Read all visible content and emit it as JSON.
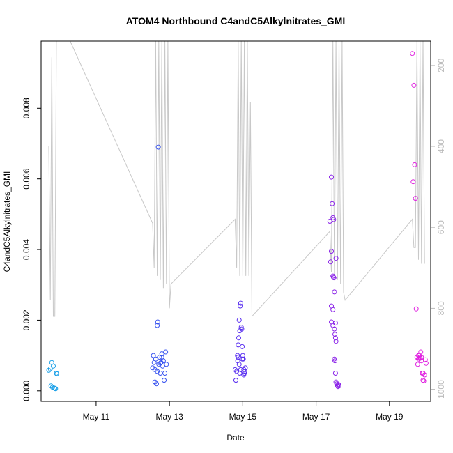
{
  "chart_data": {
    "type": "scatter",
    "title": "ATOM4 Northbound C4andC5Alkylnitrates_GMI",
    "xlabel": "Date",
    "ylabel": "C4andC5Alkylnitrates_GMI",
    "x_range": [
      "2016-05-09T12:00",
      "2016-05-20T03:00"
    ],
    "ylim": [
      -0.0003,
      0.0099
    ],
    "y_ticks": [
      {
        "value": 0.0,
        "label": "0.000"
      },
      {
        "value": 0.002,
        "label": "0.002"
      },
      {
        "value": 0.004,
        "label": "0.004"
      },
      {
        "value": 0.006,
        "label": "0.006"
      },
      {
        "value": 0.008,
        "label": "0.008"
      }
    ],
    "x_ticks": [
      {
        "value": "2016-05-11T00:00",
        "label": "May 11"
      },
      {
        "value": "2016-05-13T00:00",
        "label": "May 13"
      },
      {
        "value": "2016-05-15T00:00",
        "label": "May 15"
      },
      {
        "value": "2016-05-17T00:00",
        "label": "May 17"
      },
      {
        "value": "2016-05-19T00:00",
        "label": "May 19"
      }
    ],
    "right_axis": {
      "ylim": [
        1030,
        140
      ],
      "ticks": [
        {
          "value": 200,
          "label": "200"
        },
        {
          "value": 400,
          "label": "400"
        },
        {
          "value": 600,
          "label": "600"
        },
        {
          "value": 800,
          "label": "800"
        },
        {
          "value": 1000,
          "label": "1000"
        }
      ],
      "color": "#bbbbbb"
    },
    "right_series": {
      "color": "#c8c8c8",
      "points": [
        [
          "2016-05-09T17:00",
          400
        ],
        [
          "2016-05-09T18:00",
          780
        ],
        [
          "2016-05-09T19:00",
          180
        ],
        [
          "2016-05-09T20:00",
          820
        ],
        [
          "2016-05-09T21:00",
          820
        ],
        [
          "2016-05-09T22:00",
          140
        ],
        [
          "2016-05-10T07:00",
          140
        ],
        [
          "2016-05-12T13:00",
          590
        ],
        [
          "2016-05-12T14:00",
          700
        ],
        [
          "2016-05-12T15:00",
          140
        ],
        [
          "2016-05-12T16:00",
          720
        ],
        [
          "2016-05-12T17:00",
          140
        ],
        [
          "2016-05-12T18:00",
          730
        ],
        [
          "2016-05-12T19:00",
          140
        ],
        [
          "2016-05-12T20:00",
          750
        ],
        [
          "2016-05-12T21:00",
          140
        ],
        [
          "2016-05-12T22:00",
          740
        ],
        [
          "2016-05-12T23:00",
          140
        ],
        [
          "2016-05-13T00:00",
          800
        ],
        [
          "2016-05-13T01:00",
          740
        ],
        [
          "2016-05-14T19:00",
          580
        ],
        [
          "2016-05-14T20:00",
          700
        ],
        [
          "2016-05-14T21:00",
          140
        ],
        [
          "2016-05-14T22:00",
          720
        ],
        [
          "2016-05-14T23:00",
          140
        ],
        [
          "2016-05-15T00:00",
          720
        ],
        [
          "2016-05-15T01:00",
          140
        ],
        [
          "2016-05-15T02:00",
          720
        ],
        [
          "2016-05-15T03:00",
          140
        ],
        [
          "2016-05-15T04:00",
          720
        ],
        [
          "2016-05-15T05:00",
          290
        ],
        [
          "2016-05-15T06:00",
          820
        ],
        [
          "2016-05-17T09:00",
          610
        ],
        [
          "2016-05-17T10:00",
          710
        ],
        [
          "2016-05-17T11:00",
          140
        ],
        [
          "2016-05-17T12:00",
          720
        ],
        [
          "2016-05-17T13:00",
          140
        ],
        [
          "2016-05-17T14:00",
          730
        ],
        [
          "2016-05-17T15:00",
          140
        ],
        [
          "2016-05-17T16:00",
          740
        ],
        [
          "2016-05-17T17:00",
          140
        ],
        [
          "2016-05-17T18:00",
          760
        ],
        [
          "2016-05-17T19:00",
          780
        ],
        [
          "2016-05-19T15:00",
          580
        ],
        [
          "2016-05-19T16:00",
          650
        ],
        [
          "2016-05-19T17:00",
          650
        ],
        [
          "2016-05-19T18:00",
          140
        ],
        [
          "2016-05-19T19:00",
          680
        ],
        [
          "2016-05-19T20:00",
          140
        ],
        [
          "2016-05-19T21:00",
          690
        ],
        [
          "2016-05-19T22:00",
          140
        ],
        [
          "2016-05-19T23:00",
          690
        ]
      ]
    },
    "series": [
      {
        "color": "#1aa0e8",
        "points": [
          [
            "2016-05-09T17:00",
            0.00058
          ],
          [
            "2016-05-09T18:00",
            0.00062
          ],
          [
            "2016-05-09T19:00",
            0.0008
          ],
          [
            "2016-05-09T20:00",
            0.0007
          ],
          [
            "2016-05-09T18:30",
            0.00014
          ],
          [
            "2016-05-09T19:30",
            0.0001
          ],
          [
            "2016-05-09T20:30",
            8e-05
          ],
          [
            "2016-05-09T21:00",
            7e-05
          ],
          [
            "2016-05-09T21:30",
            6e-05
          ],
          [
            "2016-05-09T22:00",
            0.0005
          ],
          [
            "2016-05-09T22:20",
            0.00048
          ]
        ]
      },
      {
        "color": "#3a55f0",
        "points": [
          [
            "2016-05-12T13:00",
            0.00065
          ],
          [
            "2016-05-12T13:30",
            0.001
          ],
          [
            "2016-05-12T14:00",
            0.0008
          ],
          [
            "2016-05-12T14:30",
            0.0006
          ],
          [
            "2016-05-12T15:00",
            0.0009
          ],
          [
            "2016-05-12T15:30",
            0.0002
          ],
          [
            "2016-05-12T16:00",
            0.00185
          ],
          [
            "2016-05-12T16:20",
            0.00195
          ],
          [
            "2016-05-12T16:40",
            0.0069
          ],
          [
            "2016-05-12T17:00",
            0.00075
          ],
          [
            "2016-05-12T17:30",
            0.00095
          ],
          [
            "2016-05-12T18:00",
            0.0005
          ],
          [
            "2016-05-12T18:30",
            0.0008
          ],
          [
            "2016-05-12T19:00",
            0.00105
          ],
          [
            "2016-05-12T19:30",
            0.0007
          ],
          [
            "2016-05-12T20:00",
            0.00085
          ],
          [
            "2016-05-12T20:30",
            0.0003
          ],
          [
            "2016-05-12T21:00",
            0.0005
          ],
          [
            "2016-05-12T21:30",
            0.0011
          ],
          [
            "2016-05-12T22:00",
            0.00075
          ],
          [
            "2016-05-12T14:30",
            0.00025
          ],
          [
            "2016-05-12T16:00",
            0.00055
          ],
          [
            "2016-05-12T18:00",
            0.00078
          ],
          [
            "2016-05-12T19:00",
            0.00095
          ]
        ]
      },
      {
        "color": "#5a30f0",
        "points": [
          [
            "2016-05-14T19:00",
            0.0006
          ],
          [
            "2016-05-14T19:30",
            0.0003
          ],
          [
            "2016-05-14T20:00",
            0.00055
          ],
          [
            "2016-05-14T20:30",
            0.001
          ],
          [
            "2016-05-14T21:00",
            0.0013
          ],
          [
            "2016-05-14T21:20",
            0.0015
          ],
          [
            "2016-05-14T21:40",
            0.002
          ],
          [
            "2016-05-14T22:00",
            0.0017
          ],
          [
            "2016-05-14T22:20",
            0.0024
          ],
          [
            "2016-05-14T22:40",
            0.00248
          ],
          [
            "2016-05-14T23:00",
            0.0018
          ],
          [
            "2016-05-14T23:20",
            0.00175
          ],
          [
            "2016-05-14T23:40",
            0.00125
          ],
          [
            "2016-05-15T00:00",
            0.001
          ],
          [
            "2016-05-15T00:20",
            0.0009
          ],
          [
            "2016-05-15T00:40",
            0.0006
          ],
          [
            "2016-05-15T01:00",
            0.0005
          ],
          [
            "2016-05-15T01:20",
            0.00055
          ],
          [
            "2016-05-15T01:40",
            0.00065
          ],
          [
            "2016-05-14T20:40",
            0.00085
          ],
          [
            "2016-05-14T21:40",
            0.00075
          ],
          [
            "2016-05-14T22:40",
            0.0006
          ],
          [
            "2016-05-14T23:40",
            0.0009
          ],
          [
            "2016-05-15T00:40",
            0.00045
          ],
          [
            "2016-05-14T21:00",
            0.00095
          ],
          [
            "2016-05-14T22:00",
            0.0005
          ]
        ]
      },
      {
        "color": "#8a22e8",
        "points": [
          [
            "2016-05-17T09:00",
            0.0048
          ],
          [
            "2016-05-17T10:00",
            0.00605
          ],
          [
            "2016-05-17T10:30",
            0.0053
          ],
          [
            "2016-05-17T11:00",
            0.0049
          ],
          [
            "2016-05-17T11:30",
            0.00485
          ],
          [
            "2016-05-17T09:30",
            0.00365
          ],
          [
            "2016-05-17T10:00",
            0.00395
          ],
          [
            "2016-05-17T11:00",
            0.00325
          ],
          [
            "2016-05-17T11:20",
            0.00322
          ],
          [
            "2016-05-17T11:40",
            0.0032
          ],
          [
            "2016-05-17T12:00",
            0.0028
          ],
          [
            "2016-05-17T13:00",
            0.00375
          ],
          [
            "2016-05-17T10:00",
            0.0024
          ],
          [
            "2016-05-17T11:00",
            0.0023
          ],
          [
            "2016-05-17T10:00",
            0.00195
          ],
          [
            "2016-05-17T11:00",
            0.00185
          ],
          [
            "2016-05-17T12:00",
            0.00175
          ],
          [
            "2016-05-17T12:40",
            0.00192
          ],
          [
            "2016-05-17T12:20",
            0.0016
          ],
          [
            "2016-05-17T12:40",
            0.0015
          ],
          [
            "2016-05-17T13:00",
            0.0014
          ],
          [
            "2016-05-17T12:00",
            0.0009
          ],
          [
            "2016-05-17T12:20",
            0.00085
          ],
          [
            "2016-05-17T12:40",
            0.0005
          ],
          [
            "2016-05-17T13:00",
            0.00025
          ],
          [
            "2016-05-17T13:30",
            0.0002
          ],
          [
            "2016-05-17T14:00",
            0.00015
          ],
          [
            "2016-05-17T14:20",
            0.00012
          ],
          [
            "2016-05-17T14:40",
            0.00018
          ],
          [
            "2016-05-17T15:00",
            0.00014
          ]
        ]
      },
      {
        "color": "#e020e0",
        "points": [
          [
            "2016-05-19T15:00",
            0.00955
          ],
          [
            "2016-05-19T16:00",
            0.00865
          ],
          [
            "2016-05-19T16:30",
            0.0064
          ],
          [
            "2016-05-19T15:30",
            0.00592
          ],
          [
            "2016-05-19T17:00",
            0.00545
          ],
          [
            "2016-05-19T17:30",
            0.00232
          ],
          [
            "2016-05-19T18:00",
            0.00095
          ],
          [
            "2016-05-19T18:30",
            0.00075
          ],
          [
            "2016-05-19T19:00",
            0.0009
          ],
          [
            "2016-05-19T19:30",
            0.001
          ],
          [
            "2016-05-19T20:00",
            0.00092
          ],
          [
            "2016-05-19T20:30",
            0.0011
          ],
          [
            "2016-05-19T21:00",
            0.00085
          ],
          [
            "2016-05-19T21:30",
            0.0005
          ],
          [
            "2016-05-19T22:00",
            0.0003
          ],
          [
            "2016-05-19T22:30",
            0.00028
          ],
          [
            "2016-05-19T23:00",
            0.00045
          ],
          [
            "2016-05-19T23:30",
            0.00088
          ],
          [
            "2016-05-20T00:00",
            0.00078
          ],
          [
            "2016-05-19T19:00",
            0.001
          ],
          [
            "2016-05-19T20:00",
            0.00095
          ],
          [
            "2016-05-19T21:00",
            0.00095
          ],
          [
            "2016-05-19T22:00",
            0.0005
          ]
        ]
      }
    ]
  }
}
